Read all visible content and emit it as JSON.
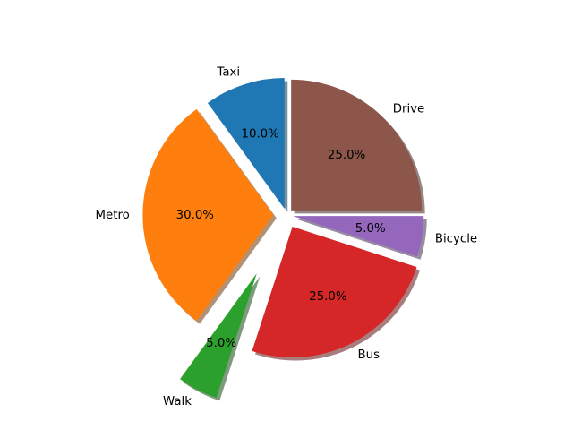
{
  "chart_data": {
    "type": "pie",
    "title": "",
    "slices": [
      {
        "label": "Taxi",
        "value": 10,
        "pct_label": "10.0%",
        "color": "#1f77b4",
        "explode": 0.05
      },
      {
        "label": "Metro",
        "value": 30,
        "pct_label": "30.0%",
        "color": "#ff7f0e",
        "explode": 0.1
      },
      {
        "label": "Walk",
        "value": 5,
        "pct_label": "5.0%",
        "color": "#2ca02c",
        "explode": 0.5
      },
      {
        "label": "Bus",
        "value": 25,
        "pct_label": "25.0%",
        "color": "#d62728",
        "explode": 0.1
      },
      {
        "label": "Bicycle",
        "value": 5,
        "pct_label": "5.0%",
        "color": "#9467bd",
        "explode": 0.05
      },
      {
        "label": "Drive",
        "value": 25,
        "pct_label": "25.0%",
        "color": "#8c564b",
        "explode": 0.05
      }
    ],
    "start_angle_deg": 90,
    "shadow": true,
    "autopct": "%1.1f%%"
  }
}
